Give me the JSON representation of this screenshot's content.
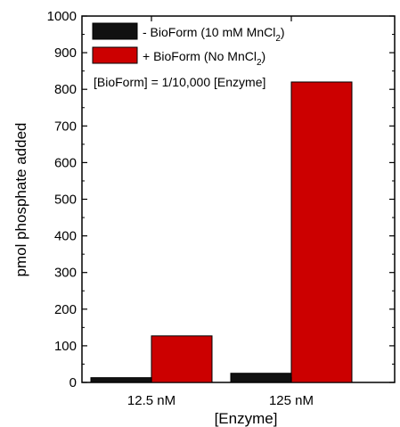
{
  "chart_data": {
    "type": "bar",
    "categories": [
      "12.5 nM",
      "125 nM"
    ],
    "series": [
      {
        "name": "- BioForm (10 mM MnCl2)",
        "legend_main": "- BioForm (10 mM MnCl",
        "legend_sub": "2",
        "legend_end": ")",
        "color": "#111111",
        "values": [
          13,
          25
        ]
      },
      {
        "name": "+ BioForm  (No MnCl2)",
        "legend_main": "+ BioForm  (No MnCl",
        "legend_sub": "2",
        "legend_end": ")",
        "color": "#cc0000",
        "values": [
          127,
          820
        ]
      }
    ],
    "xlabel": "[Enzyme]",
    "ylabel": "pmol phosphate added",
    "ylim": [
      0,
      1000
    ],
    "yticks": [
      0,
      100,
      200,
      300,
      400,
      500,
      600,
      700,
      800,
      900,
      1000
    ],
    "annotation": "[BioForm] = 1/10,000 [Enzyme]",
    "legend_position": "top-left"
  }
}
